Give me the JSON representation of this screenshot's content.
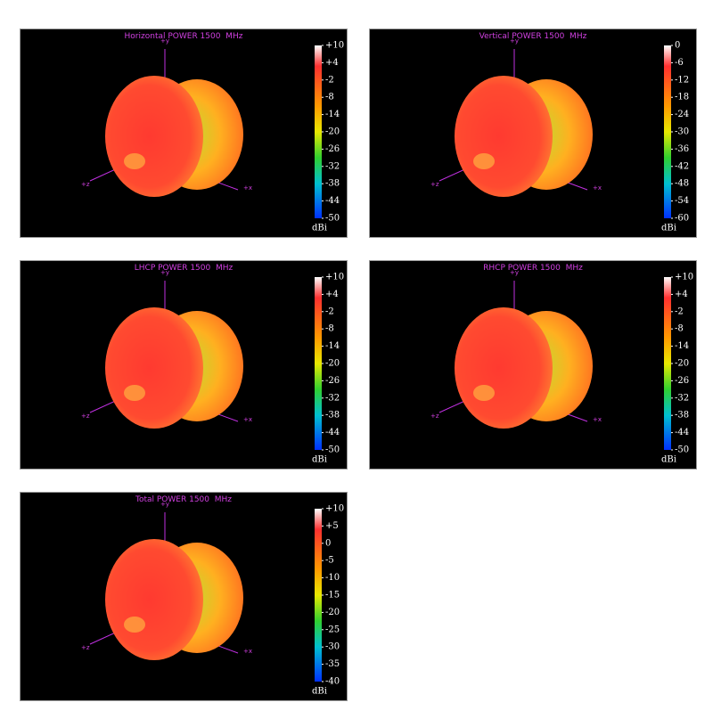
{
  "panels": [
    {
      "title": "Horizontal POWER 1500  MHz",
      "axes": [
        "+y",
        "+x",
        "+z"
      ],
      "unit": "dBi",
      "clim": [
        -50,
        10
      ],
      "ticks": [
        {
          "value": 10,
          "label": "+10"
        },
        {
          "value": 4,
          "label": "+4"
        },
        -2,
        -8,
        -14,
        -20,
        -26,
        -32,
        -38,
        -44,
        -50
      ]
    },
    {
      "title": "Vertical POWER 1500  MHz",
      "axes": [
        "+y",
        "+x",
        "+z"
      ],
      "unit": "dBi",
      "clim": [
        -60,
        0
      ],
      "ticks": [
        0,
        -6,
        -12,
        -18,
        -24,
        -30,
        -36,
        -42,
        -48,
        -54,
        -60
      ]
    },
    {
      "title": "LHCP POWER 1500  MHz",
      "axes": [
        "+y",
        "+x",
        "+z"
      ],
      "unit": "dBi",
      "clim": [
        -50,
        10
      ],
      "ticks": [
        {
          "value": 10,
          "label": "+10"
        },
        {
          "value": 4,
          "label": "+4"
        },
        -2,
        -8,
        -14,
        -20,
        -26,
        -32,
        -38,
        -44,
        -50
      ]
    },
    {
      "title": "RHCP POWER 1500  MHz",
      "axes": [
        "+y",
        "+x",
        "+z"
      ],
      "unit": "dBi",
      "clim": [
        -50,
        10
      ],
      "ticks": [
        {
          "value": 10,
          "label": "+10"
        },
        {
          "value": 4,
          "label": "+4"
        },
        -2,
        -8,
        -14,
        -20,
        -26,
        -32,
        -38,
        -44,
        -50
      ]
    },
    {
      "title": "Total POWER 1500  MHz",
      "axes": [
        "+y",
        "+x",
        "+z"
      ],
      "unit": "dBi",
      "clim": [
        -40,
        10
      ],
      "ticks": [
        {
          "value": 10,
          "label": "+10"
        },
        {
          "value": 5,
          "label": "+5"
        },
        0,
        -5,
        -10,
        -15,
        -20,
        -25,
        -30,
        -35,
        -40
      ]
    }
  ]
}
